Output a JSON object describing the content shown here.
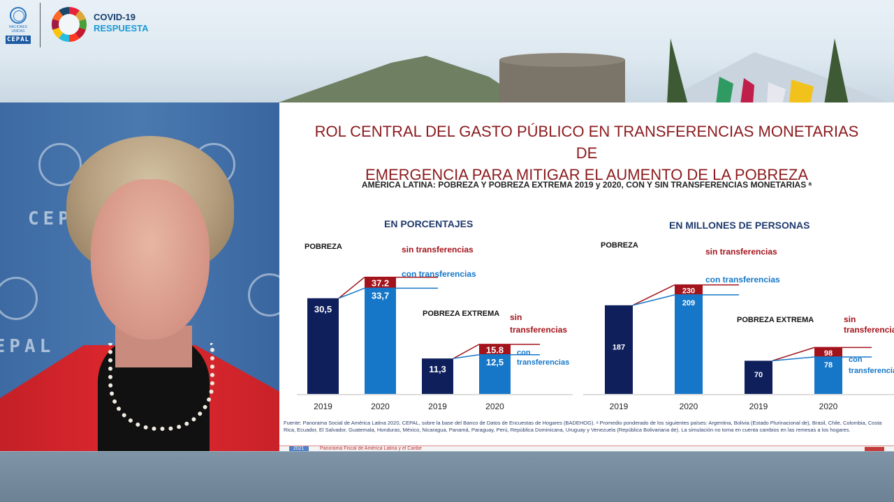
{
  "header": {
    "un_small_text": "NACIONES UNIDAS",
    "cepal_logo": "CEPAL",
    "covid_line1": "COVID-19",
    "covid_line2": "RESPUESTA"
  },
  "webcam": {
    "wall_logo": "CEPAL",
    "icons": [
      "un-emblem-icon"
    ]
  },
  "slide": {
    "title_line1": "ROL CENTRAL DEL GASTO PÚBLICO EN TRANSFERENCIAS MONETARIAS DE",
    "title_line2": "EMERGENCIA PARA MITIGAR EL AUMENTO DE LA POBREZA",
    "subtitle": "AMÉRICA LATINA: POBREZA Y POBREZA EXTREMA 2019 y 2020, CON Y SIN TRANSFERENCIAS MONETARIAS ᵃ",
    "source": "Fuente: Panorama Social de América Latina 2020, CEPAL, sobre la base del Banco de Datos de Encuestas de Hogares (BADEHOG). ᵃ Promedio ponderado de los siguientes países: Argentina, Bolivia (Estado Plurinacional de), Brasil, Chile, Colombia, Costa Rica, Ecuador, El Salvador, Guatemala, Honduras, México, Nicaragua, Panamá, Paraguay, Perú, República Dominicana, Uruguay y Venezuela (República Bolivariana de). La simulación no toma en cuenta cambios en las remesas a los hogares.",
    "footer_year": "2021",
    "footer_text": "Panorama Fiscal de América Latina y el Caribe"
  },
  "colors": {
    "dark_navy": "#0f1f5c",
    "light_blue": "#1677c8",
    "dark_red": "#a3131b",
    "title_red": "#8b1a1d"
  },
  "chart_data": [
    {
      "type": "bar",
      "title": "EN PORCENTAJES",
      "groups": [
        {
          "label": "POBREZA",
          "categories": [
            "2019",
            "2020"
          ],
          "values_2019": 30.5,
          "values_2020_con": 33.7,
          "values_2020_sin": 37.2,
          "label_2019": "30,5",
          "label_con": "33,7",
          "label_sin": "37.2",
          "sin_label": "sin transferencias",
          "con_label": "con transferencias"
        },
        {
          "label": "POBREZA EXTREMA",
          "categories": [
            "2019",
            "2020"
          ],
          "values_2019": 11.3,
          "values_2020_con": 12.5,
          "values_2020_sin": 15.8,
          "label_2019": "11,3",
          "label_con": "12,5",
          "label_sin": "15.8",
          "sin_label_1": "sin",
          "sin_label_2": "transferencias",
          "con_label_1": "con",
          "con_label_2": "transferencias"
        }
      ],
      "ylim": [
        0,
        40
      ]
    },
    {
      "type": "bar",
      "title": "EN MILLONES DE PERSONAS",
      "groups": [
        {
          "label": "POBREZA",
          "categories": [
            "2019",
            "2020"
          ],
          "values_2019": 187,
          "values_2020_con": 209,
          "values_2020_sin": 230,
          "label_2019": "187",
          "label_con": "209",
          "label_sin": "230",
          "sin_label": "sin transferencias",
          "con_label": "con transferencias"
        },
        {
          "label": "POBREZA EXTREMA",
          "categories": [
            "2019",
            "2020"
          ],
          "values_2019": 70,
          "values_2020_con": 78,
          "values_2020_sin": 98,
          "label_2019": "70",
          "label_con": "78",
          "label_sin": "98",
          "sin_label_1": "sin",
          "sin_label_2": "transferencias",
          "con_label_1": "con",
          "con_label_2": "transferencias"
        }
      ],
      "ylim": [
        0,
        250
      ]
    }
  ]
}
